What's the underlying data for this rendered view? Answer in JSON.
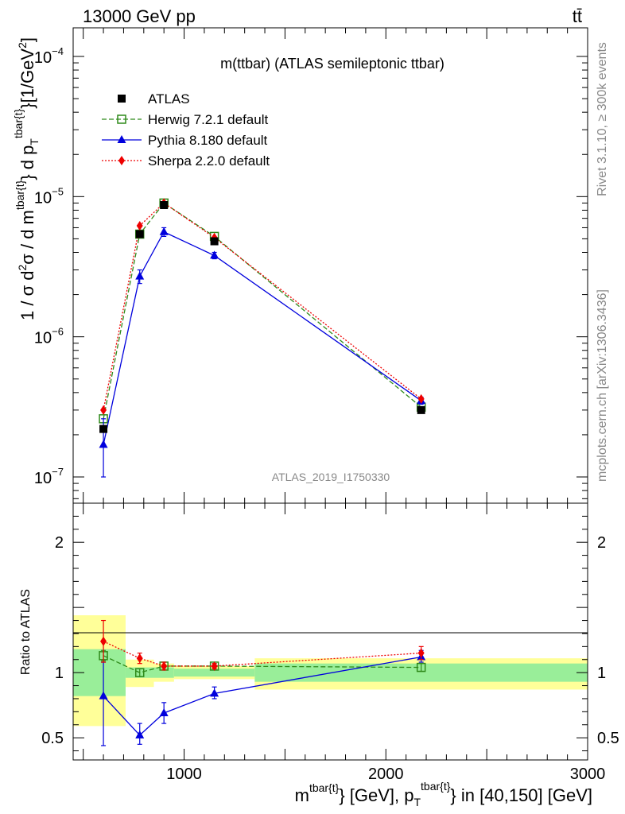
{
  "header": {
    "left": "13000 GeV pp",
    "right": "tt̄"
  },
  "side_labels": {
    "rivet": "Rivet 3.1.10, ≥ 300k events",
    "mcplots": "mcplots.cern.ch [arXiv:1306.3436]"
  },
  "plot_title": "m(ttbar) (ATLAS semileptonic ttbar)",
  "analysis_id": "ATLAS_2019_I1750330",
  "ylabel_main": "1 / σ d²σ / d m^tbar{t} d p_T^tbar{t} [1/GeV²]",
  "ylabel_ratio": "Ratio to ATLAS",
  "xlabel": "m^tbar{t} [GeV], p_T^tbar{t} in [40,150] [GeV]",
  "colors": {
    "atlas": "#000000",
    "herwig": "#2f8a1a",
    "pythia": "#0000dd",
    "sherpa": "#ee0000",
    "band_inner": "#99ee99",
    "band_outer": "#ffff99"
  },
  "chart_data": {
    "type": "line",
    "x_axis": {
      "range": [
        450,
        3000
      ],
      "ticks": [
        1000,
        2000,
        3000
      ],
      "tick_labels": [
        "1000",
        "2000",
        "3000"
      ]
    },
    "main_y_axis": {
      "scale": "log",
      "range": [
        6.5e-08,
        0.00016
      ],
      "ticks": [
        1e-07,
        1e-06,
        1e-05,
        0.0001
      ],
      "tick_labels": [
        {
          "base": "10",
          "exp": "−7"
        },
        {
          "base": "10",
          "exp": "−6"
        },
        {
          "base": "10",
          "exp": "−5"
        },
        {
          "base": "10",
          "exp": "−4"
        }
      ]
    },
    "ratio_y_axis": {
      "scale": "linear",
      "range": [
        0.33,
        2.3
      ],
      "ticks": [
        0.5,
        1,
        2
      ],
      "tick_labels": [
        "0.5",
        "1",
        "2"
      ]
    },
    "x": [
      600,
      780,
      900,
      1150,
      2175
    ],
    "bins": [
      [
        450,
        710
      ],
      [
        710,
        850
      ],
      [
        850,
        950
      ],
      [
        950,
        1350
      ],
      [
        1350,
        3000
      ]
    ],
    "series": [
      {
        "name": "ATLAS",
        "key": "atlas",
        "marker": "square-filled",
        "values": [
          2.2e-07,
          5.4e-06,
          8.7e-06,
          4.8e-06,
          3e-07
        ]
      },
      {
        "name": "Herwig 7.2.1 default",
        "key": "herwig",
        "marker": "square-open",
        "line": "dashed",
        "values": [
          2.6e-07,
          5.4e-06,
          9e-06,
          5.2e-06,
          3.15e-07
        ],
        "ratio": [
          1.13,
          1.0,
          1.05,
          1.05,
          1.04
        ],
        "ratio_err": [
          0.04,
          0.03,
          0.03,
          0.02,
          0.03
        ]
      },
      {
        "name": "Pythia 8.180 default",
        "key": "pythia",
        "marker": "triangle-filled",
        "line": "solid",
        "values": [
          1.7e-07,
          2.7e-06,
          5.6e-06,
          3.8e-06,
          3.5e-07
        ],
        "errors": [
          [
            1e-07,
            2.6e-07
          ],
          [
            2.4e-06,
            3e-06
          ],
          [
            5.2e-06,
            6e-06
          ],
          [
            3.6e-06,
            4e-06
          ],
          [
            3.3e-07,
            3.7e-07
          ]
        ],
        "ratio": [
          0.82,
          0.52,
          0.69,
          0.84,
          1.12
        ],
        "ratio_err": [
          [
            0.44,
            1.08
          ],
          [
            0.45,
            0.61
          ],
          [
            0.61,
            0.77
          ],
          [
            0.8,
            0.89
          ],
          [
            1.08,
            1.17
          ]
        ]
      },
      {
        "name": "Sherpa 2.2.0 default",
        "key": "sherpa",
        "marker": "diamond-filled",
        "line": "dotted",
        "values": [
          3e-07,
          6.2e-06,
          9e-06,
          5.1e-06,
          3.6e-07
        ],
        "ratio": [
          1.24,
          1.11,
          1.05,
          1.05,
          1.15
        ],
        "ratio_err": [
          [
            1.08,
            1.4
          ],
          [
            1.07,
            1.15
          ],
          [
            1.02,
            1.08
          ],
          [
            1.03,
            1.07
          ],
          [
            1.1,
            1.2
          ]
        ]
      }
    ],
    "ratio_bands": {
      "inner": [
        [
          0.82,
          1.18
        ],
        [
          0.96,
          1.04
        ],
        [
          0.96,
          1.04
        ],
        [
          0.97,
          1.03
        ],
        [
          0.93,
          1.07
        ]
      ],
      "outer": [
        [
          0.59,
          1.44
        ],
        [
          0.89,
          1.1
        ],
        [
          0.93,
          1.07
        ],
        [
          0.95,
          1.05
        ],
        [
          0.87,
          1.11
        ]
      ]
    },
    "legend_placement": "top-left"
  }
}
